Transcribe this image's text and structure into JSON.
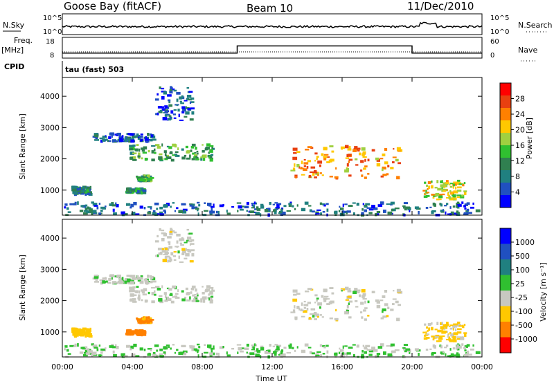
{
  "header": {
    "station": "Goose Bay (fitACF)",
    "beam": "Beam 10",
    "date": "11/Dec/2010"
  },
  "side_labels": {
    "nsky": "N.Sky",
    "nsearch": "N.Search",
    "freq": "Freq.",
    "freq_unit": "[MHz]",
    "cpid": "CPID",
    "nave": "Nave"
  },
  "noise_panel": {
    "left_ticks": [
      "10^5",
      "10^0"
    ],
    "right_ticks": [
      "10^5",
      "10^0"
    ]
  },
  "freq_panel": {
    "left_ticks": [
      "18",
      "8"
    ],
    "right_ticks": [
      "60",
      "0"
    ]
  },
  "cpid_text": "tau (fast) 503",
  "power_colorbar": {
    "title": "Power [dB]",
    "ticks": [
      "28",
      "24",
      "20",
      "16",
      "12",
      "8",
      "4"
    ],
    "colors": [
      "#ff0000",
      "#e84010",
      "#ff8000",
      "#ffc800",
      "#a0d040",
      "#30c030",
      "#308050",
      "#208080",
      "#2050c0",
      "#0000ff"
    ]
  },
  "velocity_colorbar": {
    "title": "Velocity [m s⁻¹]",
    "ticks": [
      "1000",
      "500",
      "100",
      "25",
      "-25",
      "-100",
      "-500",
      "-1000"
    ],
    "colors": [
      "#0000ff",
      "#2050c0",
      "#208080",
      "#30c030",
      "#c8c8c0",
      "#ffc800",
      "#ff8000",
      "#ff0000"
    ]
  },
  "xaxis": {
    "label": "Time UT",
    "ticks": [
      "00:00",
      "04:00",
      "08:00",
      "12:00",
      "16:00",
      "20:00",
      "00:00"
    ]
  },
  "yaxis": {
    "label": "Slant Range [km]",
    "ticks": [
      "1000",
      "2000",
      "3000",
      "4000"
    ]
  },
  "chart_data": {
    "type": "heatmap",
    "title": "Goose Bay (fitACF)",
    "subtitle": "Beam 10 — 11/Dec/2010",
    "xlabel": "Time UT",
    "ylabel": "Slant Range [km]",
    "xlim_hours": [
      0,
      24
    ],
    "ylim_km": [
      200,
      4600
    ],
    "frequency_steps": [
      {
        "start_hour": 0,
        "end_hour": 10,
        "freq_mhz": 10
      },
      {
        "start_hour": 10,
        "end_hour": 20,
        "freq_mhz": 14
      },
      {
        "start_hour": 20,
        "end_hour": 24,
        "freq_mhz": 10
      }
    ],
    "scatter_regions": [
      {
        "t0": 0.5,
        "t1": 1.6,
        "r0": 850,
        "r1": 1100,
        "power_db": 8,
        "velocity": -60
      },
      {
        "t0": 1.7,
        "t1": 5.2,
        "r0": 2550,
        "r1": 2800,
        "power_db": 6,
        "velocity": 10
      },
      {
        "t0": 3.8,
        "t1": 8.7,
        "r0": 1950,
        "r1": 2450,
        "power_db": 12,
        "velocity": 5
      },
      {
        "t0": 3.6,
        "t1": 4.6,
        "r0": 900,
        "r1": 1050,
        "power_db": 10,
        "velocity": -180
      },
      {
        "t0": 4.2,
        "t1": 5.0,
        "r0": 1300,
        "r1": 1450,
        "power_db": 12,
        "velocity": -120
      },
      {
        "t0": 5.3,
        "t1": 7.4,
        "r0": 3200,
        "r1": 4300,
        "power_db": 5,
        "velocity": 0
      },
      {
        "t0": 13.0,
        "t1": 19.2,
        "r0": 1350,
        "r1": 2400,
        "power_db": 22,
        "velocity": 0
      },
      {
        "t0": 20.6,
        "t1": 23.0,
        "r0": 700,
        "r1": 1300,
        "power_db": 18,
        "velocity": -40
      },
      {
        "t0": 0.0,
        "t1": 24.0,
        "r0": 200,
        "r1": 600,
        "power_db": 6,
        "velocity": 30
      }
    ]
  }
}
